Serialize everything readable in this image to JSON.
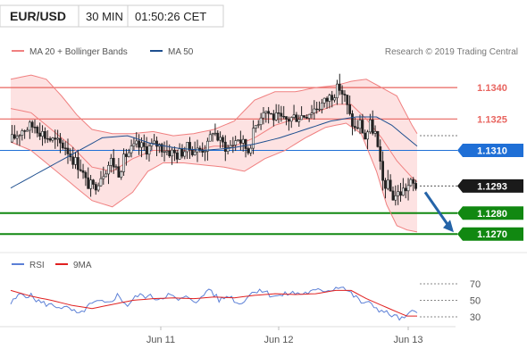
{
  "header": {
    "symbol": "EUR/USD",
    "timeframe": "30 MIN",
    "time": "01:50:26 CET"
  },
  "legend": {
    "bollinger": "MA 20 + Bollinger Bands",
    "ma50": "MA 50",
    "rsi": "RSI",
    "rsi_ma": "9MA"
  },
  "source": "Research © 2019 Trading Central",
  "colors": {
    "candle": "#222222",
    "bollinger_line": "#f08080",
    "bollinger_fill": "#fde2e2",
    "ma50": "#1e4f8f",
    "resistance": "#e8645f",
    "support": "#118811",
    "current_line": "#1f6fd6",
    "last_tag": "#1a1a1a",
    "arrow": "#2564a8",
    "rsi": "#5b7fd6",
    "rsi_ma": "#e02020"
  },
  "chart_data": {
    "type": "candlestick",
    "x_labels": [
      "Jun 11",
      "Jun 12",
      "Jun 13"
    ],
    "ylim": [
      1.1262,
      1.1352
    ],
    "price_levels": [
      {
        "label": "1.1340",
        "value": 1.134,
        "kind": "resistance"
      },
      {
        "label": "1.1325",
        "value": 1.1325,
        "kind": "resistance"
      },
      {
        "label": "1.1310",
        "value": 1.131,
        "kind": "current"
      },
      {
        "label": "1.1293",
        "value": 1.1293,
        "kind": "last"
      },
      {
        "label": "1.1280",
        "value": 1.128,
        "kind": "support"
      },
      {
        "label": "1.1270",
        "value": 1.127,
        "kind": "support"
      }
    ],
    "price_path": [
      [
        0,
        1.1314
      ],
      [
        5,
        1.132
      ],
      [
        10,
        1.1322
      ],
      [
        14,
        1.1317
      ],
      [
        18,
        1.1314
      ],
      [
        22,
        1.1312
      ],
      [
        25,
        1.1306
      ],
      [
        28,
        1.1302
      ],
      [
        30,
        1.1295
      ],
      [
        33,
        1.1292
      ],
      [
        36,
        1.1298
      ],
      [
        40,
        1.1305
      ],
      [
        43,
        1.13
      ],
      [
        46,
        1.1308
      ],
      [
        50,
        1.1312
      ],
      [
        54,
        1.1311
      ],
      [
        58,
        1.1313
      ],
      [
        62,
        1.131
      ],
      [
        66,
        1.1308
      ],
      [
        70,
        1.1311
      ],
      [
        74,
        1.131
      ],
      [
        78,
        1.1312
      ],
      [
        80,
        1.132
      ],
      [
        83,
        1.1314
      ],
      [
        86,
        1.1311
      ],
      [
        90,
        1.1316
      ],
      [
        94,
        1.131
      ],
      [
        97,
        1.1322
      ],
      [
        100,
        1.133
      ],
      [
        104,
        1.1326
      ],
      [
        108,
        1.1324
      ],
      [
        112,
        1.1326
      ],
      [
        116,
        1.1327
      ],
      [
        120,
        1.133
      ],
      [
        124,
        1.1333
      ],
      [
        128,
        1.1338
      ],
      [
        130,
        1.134
      ],
      [
        132,
        1.1335
      ],
      [
        134,
        1.1326
      ],
      [
        136,
        1.132
      ],
      [
        138,
        1.1323
      ],
      [
        140,
        1.1316
      ],
      [
        142,
        1.1322
      ],
      [
        144,
        1.1318
      ],
      [
        146,
        1.1302
      ],
      [
        147,
        1.1295
      ],
      [
        149,
        1.1293
      ],
      [
        151,
        1.1288
      ],
      [
        154,
        1.129
      ],
      [
        156,
        1.1292
      ],
      [
        158,
        1.1294
      ],
      [
        160,
        1.1293
      ]
    ],
    "ma50_path": [
      [
        0,
        1.1292
      ],
      [
        12,
        1.13
      ],
      [
        24,
        1.1308
      ],
      [
        36,
        1.1316
      ],
      [
        46,
        1.1317
      ],
      [
        56,
        1.1313
      ],
      [
        66,
        1.1311
      ],
      [
        76,
        1.131
      ],
      [
        86,
        1.1311
      ],
      [
        96,
        1.1313
      ],
      [
        106,
        1.1316
      ],
      [
        116,
        1.132
      ],
      [
        126,
        1.1324
      ],
      [
        136,
        1.1326
      ],
      [
        144,
        1.1326
      ],
      [
        150,
        1.1322
      ],
      [
        156,
        1.1316
      ],
      [
        160,
        1.1312
      ]
    ],
    "bb_middle_path": [
      [
        0,
        1.133
      ],
      [
        8,
        1.1328
      ],
      [
        16,
        1.132
      ],
      [
        24,
        1.1312
      ],
      [
        32,
        1.1302
      ],
      [
        40,
        1.13
      ],
      [
        48,
        1.1306
      ],
      [
        56,
        1.131
      ],
      [
        64,
        1.131
      ],
      [
        72,
        1.131
      ],
      [
        80,
        1.1312
      ],
      [
        88,
        1.1312
      ],
      [
        96,
        1.1316
      ],
      [
        104,
        1.1322
      ],
      [
        112,
        1.1325
      ],
      [
        120,
        1.1328
      ],
      [
        128,
        1.1332
      ],
      [
        134,
        1.1332
      ],
      [
        140,
        1.1325
      ],
      [
        146,
        1.1316
      ],
      [
        152,
        1.1305
      ],
      [
        158,
        1.1297
      ],
      [
        160,
        1.1295
      ]
    ],
    "bb_upper_path": [
      [
        0,
        1.1344
      ],
      [
        8,
        1.1346
      ],
      [
        14,
        1.1344
      ],
      [
        20,
        1.1336
      ],
      [
        26,
        1.1327
      ],
      [
        32,
        1.132
      ],
      [
        40,
        1.1318
      ],
      [
        48,
        1.1318
      ],
      [
        56,
        1.1319
      ],
      [
        64,
        1.1317
      ],
      [
        72,
        1.1318
      ],
      [
        80,
        1.132
      ],
      [
        88,
        1.1324
      ],
      [
        96,
        1.1334
      ],
      [
        104,
        1.1338
      ],
      [
        112,
        1.1338
      ],
      [
        120,
        1.134
      ],
      [
        128,
        1.1341
      ],
      [
        134,
        1.1343
      ],
      [
        140,
        1.1344
      ],
      [
        146,
        1.134
      ],
      [
        152,
        1.1336
      ],
      [
        158,
        1.1322
      ],
      [
        160,
        1.1318
      ]
    ],
    "bb_lower_path": [
      [
        0,
        1.1314
      ],
      [
        8,
        1.131
      ],
      [
        16,
        1.1302
      ],
      [
        24,
        1.1294
      ],
      [
        32,
        1.1286
      ],
      [
        40,
        1.1283
      ],
      [
        48,
        1.129
      ],
      [
        54,
        1.13
      ],
      [
        60,
        1.1304
      ],
      [
        68,
        1.1304
      ],
      [
        76,
        1.1303
      ],
      [
        84,
        1.1302
      ],
      [
        92,
        1.13
      ],
      [
        100,
        1.1306
      ],
      [
        108,
        1.131
      ],
      [
        116,
        1.1316
      ],
      [
        124,
        1.1321
      ],
      [
        132,
        1.1323
      ],
      [
        138,
        1.1318
      ],
      [
        144,
        1.13
      ],
      [
        148,
        1.1284
      ],
      [
        152,
        1.1274
      ],
      [
        156,
        1.1272
      ],
      [
        160,
        1.1271
      ]
    ],
    "rsi": {
      "ticks": [
        "70",
        "50",
        "30"
      ],
      "ylim": [
        20,
        80
      ],
      "rsi_path": [
        [
          0,
          46
        ],
        [
          4,
          58
        ],
        [
          8,
          55
        ],
        [
          12,
          47
        ],
        [
          16,
          44
        ],
        [
          20,
          42
        ],
        [
          24,
          38
        ],
        [
          27,
          32
        ],
        [
          30,
          42
        ],
        [
          34,
          48
        ],
        [
          38,
          46
        ],
        [
          42,
          56
        ],
        [
          46,
          44
        ],
        [
          50,
          56
        ],
        [
          54,
          55
        ],
        [
          58,
          52
        ],
        [
          62,
          57
        ],
        [
          66,
          50
        ],
        [
          70,
          54
        ],
        [
          74,
          48
        ],
        [
          78,
          65
        ],
        [
          82,
          50
        ],
        [
          86,
          56
        ],
        [
          90,
          45
        ],
        [
          94,
          57
        ],
        [
          98,
          64
        ],
        [
          102,
          57
        ],
        [
          106,
          55
        ],
        [
          110,
          59
        ],
        [
          114,
          58
        ],
        [
          118,
          60
        ],
        [
          122,
          62
        ],
        [
          126,
          63
        ],
        [
          130,
          68
        ],
        [
          134,
          58
        ],
        [
          138,
          48
        ],
        [
          142,
          45
        ],
        [
          146,
          37
        ],
        [
          150,
          32
        ],
        [
          154,
          27
        ],
        [
          156,
          30
        ],
        [
          158,
          36
        ],
        [
          160,
          38
        ]
      ],
      "ma_path": [
        [
          0,
          62
        ],
        [
          8,
          55
        ],
        [
          16,
          50
        ],
        [
          24,
          44
        ],
        [
          32,
          40
        ],
        [
          40,
          45
        ],
        [
          48,
          50
        ],
        [
          56,
          52
        ],
        [
          64,
          53
        ],
        [
          72,
          52
        ],
        [
          80,
          54
        ],
        [
          88,
          53
        ],
        [
          96,
          56
        ],
        [
          104,
          58
        ],
        [
          112,
          57
        ],
        [
          120,
          58
        ],
        [
          128,
          62
        ],
        [
          134,
          62
        ],
        [
          140,
          52
        ],
        [
          146,
          44
        ],
        [
          152,
          36
        ],
        [
          156,
          31
        ],
        [
          160,
          31
        ]
      ]
    }
  }
}
